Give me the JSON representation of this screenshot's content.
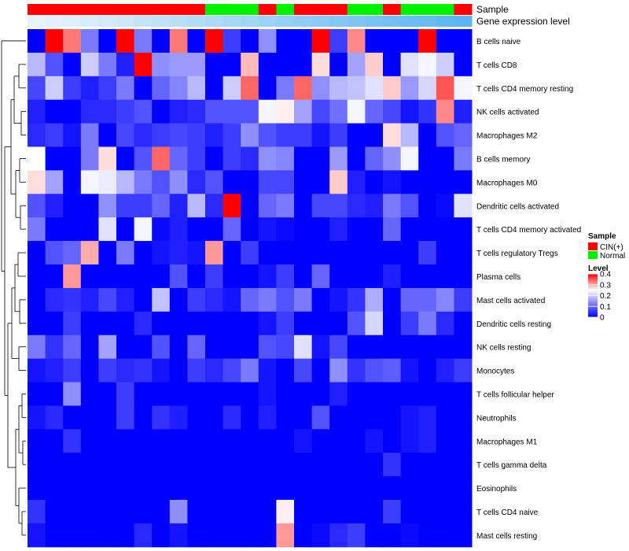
{
  "chart_data": {
    "type": "heatmap",
    "title": "",
    "annotations": {
      "sample_label": "Sample",
      "expression_label": "Gene expression level"
    },
    "columns": {
      "samples": [
        "CIN(+)",
        "CIN(+)",
        "CIN(+)",
        "CIN(+)",
        "CIN(+)",
        "CIN(+)",
        "CIN(+)",
        "CIN(+)",
        "CIN(+)",
        "CIN(+)",
        "Normal",
        "Normal",
        "Normal",
        "CIN(+)",
        "Normal",
        "CIN(+)",
        "CIN(+)",
        "CIN(+)",
        "Normal",
        "Normal",
        "CIN(+)",
        "Normal",
        "Normal",
        "Normal",
        "CIN(+)"
      ],
      "expression_rank": [
        0.0,
        0.04,
        0.08,
        0.12,
        0.16,
        0.2,
        0.24,
        0.28,
        0.32,
        0.36,
        0.4,
        0.44,
        0.48,
        0.52,
        0.56,
        0.6,
        0.64,
        0.68,
        0.72,
        0.76,
        0.8,
        0.84,
        0.88,
        0.92,
        0.96
      ]
    },
    "rows": [
      "B cells naive",
      "T cells CD8",
      "T cells CD4 memory resting",
      "NK cells activated",
      "Macrophages M2",
      "B cells memory",
      "Macrophages M0",
      "Dendritic cells activated",
      "T cells CD4 memory activated",
      "T cells regulatory  Tregs",
      "Plasma cells",
      "Mast cells activated",
      "Dendritic cells resting",
      "NK cells resting",
      "Monocytes",
      "T cells follicular helper",
      "Neutrophils",
      "Macrophages M1",
      "T cells gamma delta",
      "Eosinophils",
      "T cells CD4 naive",
      "Mast cells resting"
    ],
    "values": [
      [
        0.0,
        0.4,
        0.33,
        0.12,
        0.0,
        0.4,
        0.12,
        0.0,
        0.33,
        0.0,
        0.4,
        0.06,
        0.0,
        0.14,
        0.0,
        0.0,
        0.4,
        0.06,
        0.32,
        0.0,
        0.0,
        0.0,
        0.4,
        0.0,
        0.0
      ],
      [
        0.18,
        0.08,
        0.0,
        0.2,
        0.12,
        0.03,
        0.4,
        0.14,
        0.15,
        0.15,
        0.0,
        0.0,
        0.29,
        0.0,
        0.0,
        0.0,
        0.27,
        0.0,
        0.16,
        0.28,
        0.0,
        0.22,
        0.24,
        0.2,
        0.0
      ],
      [
        0.07,
        0.2,
        0.06,
        0.03,
        0.06,
        0.12,
        0.0,
        0.1,
        0.13,
        0.18,
        0.0,
        0.2,
        0.34,
        0.0,
        0.12,
        0.34,
        0.14,
        0.18,
        0.19,
        0.22,
        0.28,
        0.15,
        0.21,
        0.35,
        0.24
      ],
      [
        0.03,
        0.0,
        0.0,
        0.04,
        0.04,
        0.06,
        0.08,
        0.0,
        0.03,
        0.04,
        0.08,
        0.08,
        0.08,
        0.24,
        0.26,
        0.16,
        0.07,
        0.11,
        0.24,
        0.1,
        0.07,
        0.02,
        0.05,
        0.32,
        0.03
      ],
      [
        0.04,
        0.06,
        0.02,
        0.12,
        0.0,
        0.07,
        0.04,
        0.06,
        0.07,
        0.06,
        0.03,
        0.06,
        0.14,
        0.08,
        0.06,
        0.06,
        0.02,
        0.06,
        0.0,
        0.0,
        0.27,
        0.18,
        0.0,
        0.08,
        0.1
      ],
      [
        0.25,
        0.0,
        0.0,
        0.12,
        0.27,
        0.0,
        0.08,
        0.34,
        0.1,
        0.06,
        0.0,
        0.06,
        0.04,
        0.14,
        0.13,
        0.0,
        0.0,
        0.15,
        0.0,
        0.1,
        0.14,
        0.24,
        0.0,
        0.0,
        0.12
      ],
      [
        0.27,
        0.16,
        0.0,
        0.24,
        0.23,
        0.18,
        0.12,
        0.08,
        0.14,
        0.04,
        0.08,
        0.0,
        0.0,
        0.07,
        0.07,
        0.0,
        0.0,
        0.28,
        0.03,
        0.0,
        0.02,
        0.0,
        0.0,
        0.0,
        0.0
      ],
      [
        0.08,
        0.03,
        0.0,
        0.0,
        0.14,
        0.06,
        0.06,
        0.1,
        0.03,
        0.18,
        0.04,
        0.4,
        0.0,
        0.1,
        0.12,
        0.0,
        0.07,
        0.07,
        0.04,
        0.03,
        0.12,
        0.08,
        0.0,
        0.01,
        0.22
      ],
      [
        0.12,
        0.0,
        0.0,
        0.0,
        0.22,
        0.0,
        0.24,
        0.01,
        0.03,
        0.0,
        0.0,
        0.1,
        0.0,
        0.02,
        0.01,
        0.0,
        0.0,
        0.03,
        0.0,
        0.0,
        0.1,
        0.0,
        0.0,
        0.0,
        0.0
      ],
      [
        0.0,
        0.08,
        0.1,
        0.3,
        0.0,
        0.12,
        0.0,
        0.02,
        0.03,
        0.02,
        0.31,
        0.0,
        0.06,
        0.0,
        0.0,
        0.0,
        0.0,
        0.0,
        0.0,
        0.0,
        0.0,
        0.0,
        0.06,
        0.0,
        0.0
      ],
      [
        0.0,
        0.0,
        0.31,
        0.0,
        0.0,
        0.0,
        0.0,
        0.0,
        0.08,
        0.0,
        0.06,
        0.0,
        0.0,
        0.02,
        0.06,
        0.0,
        0.1,
        0.0,
        0.0,
        0.0,
        0.03,
        0.0,
        0.0,
        0.0,
        0.0
      ],
      [
        0.0,
        0.04,
        0.05,
        0.03,
        0.07,
        0.03,
        0.0,
        0.19,
        0.0,
        0.06,
        0.04,
        0.02,
        0.1,
        0.12,
        0.08,
        0.12,
        0.0,
        0.02,
        0.05,
        0.17,
        0.0,
        0.1,
        0.1,
        0.13,
        0.06
      ],
      [
        0.0,
        0.0,
        0.06,
        0.0,
        0.0,
        0.0,
        0.04,
        0.0,
        0.0,
        0.0,
        0.0,
        0.0,
        0.0,
        0.02,
        0.06,
        0.0,
        0.0,
        0.0,
        0.08,
        0.21,
        0.0,
        0.06,
        0.12,
        0.04,
        0.0
      ],
      [
        0.12,
        0.05,
        0.1,
        0.0,
        0.16,
        0.0,
        0.0,
        0.08,
        0.0,
        0.1,
        0.0,
        0.0,
        0.0,
        0.08,
        0.07,
        0.22,
        0.02,
        0.07,
        0.0,
        0.0,
        0.0,
        0.0,
        0.0,
        0.0,
        0.0
      ],
      [
        0.02,
        0.03,
        0.06,
        0.0,
        0.06,
        0.04,
        0.05,
        0.02,
        0.0,
        0.06,
        0.04,
        0.07,
        0.12,
        0.02,
        0.0,
        0.07,
        0.0,
        0.14,
        0.05,
        0.08,
        0.09,
        0.02,
        0.0,
        0.03,
        0.06
      ],
      [
        0.0,
        0.0,
        0.14,
        0.0,
        0.0,
        0.06,
        0.0,
        0.0,
        0.0,
        0.0,
        0.0,
        0.0,
        0.0,
        0.02,
        0.0,
        0.0,
        0.0,
        0.03,
        0.0,
        0.0,
        0.0,
        0.0,
        0.0,
        0.0,
        0.0
      ],
      [
        0.02,
        0.04,
        0.0,
        0.0,
        0.0,
        0.06,
        0.0,
        0.05,
        0.03,
        0.0,
        0.0,
        0.04,
        0.0,
        0.03,
        0.0,
        0.0,
        0.08,
        0.0,
        0.0,
        0.0,
        0.0,
        0.02,
        0.03,
        0.0,
        0.0
      ],
      [
        0.0,
        0.0,
        0.05,
        0.0,
        0.0,
        0.0,
        0.0,
        0.0,
        0.0,
        0.0,
        0.0,
        0.0,
        0.0,
        0.0,
        0.0,
        0.02,
        0.0,
        0.0,
        0.0,
        0.02,
        0.0,
        0.02,
        0.03,
        0.0,
        0.0
      ],
      [
        0.0,
        0.0,
        0.0,
        0.0,
        0.0,
        0.0,
        0.0,
        0.0,
        0.0,
        0.0,
        0.0,
        0.0,
        0.0,
        0.0,
        0.0,
        0.0,
        0.0,
        0.0,
        0.0,
        0.0,
        0.05,
        0.0,
        0.0,
        0.0,
        0.0
      ],
      [
        0.0,
        0.0,
        0.0,
        0.0,
        0.0,
        0.0,
        0.0,
        0.0,
        0.0,
        0.0,
        0.0,
        0.0,
        0.0,
        0.0,
        0.0,
        0.0,
        0.0,
        0.0,
        0.0,
        0.0,
        0.0,
        0.0,
        0.0,
        0.0,
        0.0
      ],
      [
        0.05,
        0.0,
        0.0,
        0.0,
        0.0,
        0.0,
        0.0,
        0.0,
        0.14,
        0.0,
        0.0,
        0.0,
        0.0,
        0.0,
        0.26,
        0.0,
        0.0,
        0.0,
        0.0,
        0.0,
        0.06,
        0.0,
        0.0,
        0.0,
        0.0
      ],
      [
        0.02,
        0.0,
        0.0,
        0.0,
        0.0,
        0.0,
        0.04,
        0.0,
        0.02,
        0.0,
        0.0,
        0.0,
        0.0,
        0.0,
        0.31,
        0.0,
        0.01,
        0.04,
        0.06,
        0.0,
        0.0,
        0.01,
        0.0,
        0.0,
        0.0
      ]
    ],
    "legend": {
      "sample_title": "Sample",
      "sample_entries": [
        {
          "name": "CIN(+)",
          "color": "#ff0000"
        },
        {
          "name": "Normal",
          "color": "#00ee00"
        }
      ],
      "level_title": "Level",
      "level_ticks": [
        "0.4",
        "0.3",
        "0.2",
        "0.1",
        "0"
      ],
      "level_range": [
        0,
        0.4
      ],
      "placement": "right"
    },
    "colors": {
      "low": "#0000ff",
      "mid": "#ffffff",
      "high": "#ff0000",
      "mid_value": 0.25,
      "expr_light": "#e8f4fb",
      "expr_dark": "#56b2f0"
    }
  }
}
